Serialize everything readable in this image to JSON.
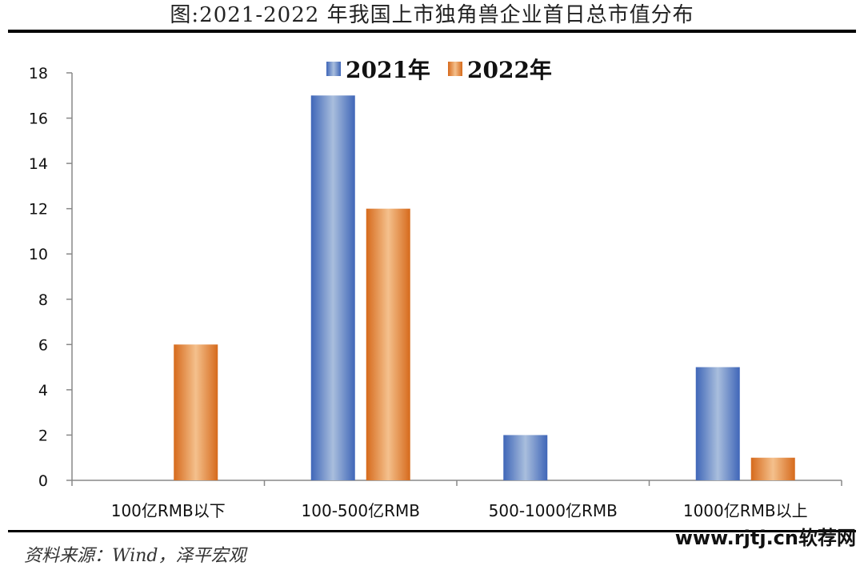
{
  "title": "图:2021-2022 年我国上市独角兽企业首日总市值分布",
  "source": "资料来源：Wind，泽平宏观",
  "watermark": "www.rjtj.cn软荐网",
  "colors": {
    "series_2021": "#4f74c4",
    "series_2022": "#e07b2e",
    "axis": "#888888"
  },
  "chart_data": {
    "type": "bar",
    "categories": [
      "100亿RMB以下",
      "100-500亿RMB",
      "500-1000亿RMB",
      "1000亿RMB以上"
    ],
    "series": [
      {
        "name": "2021年",
        "values": [
          0,
          17,
          2,
          5
        ]
      },
      {
        "name": "2022年",
        "values": [
          6,
          12,
          0,
          1
        ]
      }
    ],
    "ylim": [
      0,
      18
    ],
    "yticks": [
      0,
      2,
      4,
      6,
      8,
      10,
      12,
      14,
      16,
      18
    ],
    "legend": "top-center",
    "grid": false
  }
}
